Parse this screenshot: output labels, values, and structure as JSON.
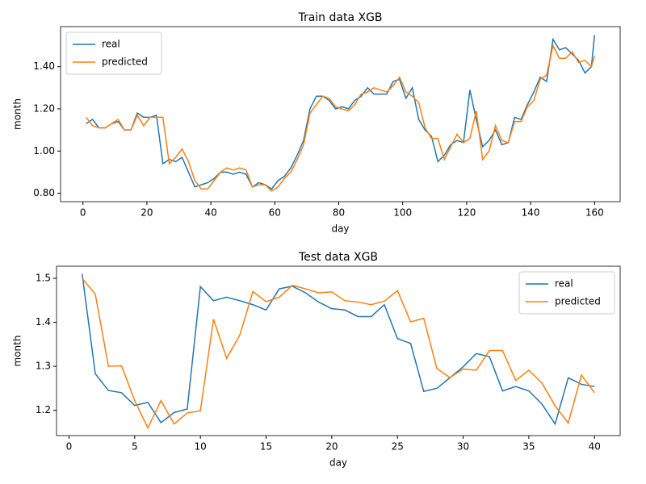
{
  "chart_data": [
    {
      "type": "line",
      "title": "Train data XGB",
      "xlabel": "day",
      "ylabel": "month",
      "legend": "upper left",
      "x": [
        1,
        3,
        5,
        7,
        9,
        11,
        13,
        15,
        17,
        19,
        21,
        23,
        25,
        27,
        29,
        31,
        33,
        35,
        37,
        39,
        41,
        43,
        45,
        47,
        49,
        51,
        53,
        55,
        57,
        59,
        61,
        63,
        65,
        67,
        69,
        71,
        73,
        75,
        77,
        79,
        81,
        83,
        85,
        87,
        89,
        91,
        93,
        95,
        97,
        99,
        101,
        103,
        105,
        107,
        109,
        111,
        113,
        115,
        117,
        119,
        121,
        123,
        125,
        127,
        129,
        131,
        133,
        135,
        137,
        139,
        141,
        143,
        145,
        147,
        149,
        151,
        153,
        155,
        157,
        159,
        160
      ],
      "series": [
        {
          "name": "real",
          "color": "#1f77b4",
          "values": [
            1.13,
            1.15,
            1.11,
            1.11,
            1.13,
            1.14,
            1.1,
            1.1,
            1.18,
            1.16,
            1.16,
            1.17,
            0.94,
            0.96,
            0.95,
            0.97,
            0.9,
            0.83,
            0.84,
            0.85,
            0.87,
            0.9,
            0.9,
            0.89,
            0.9,
            0.89,
            0.83,
            0.85,
            0.84,
            0.82,
            0.86,
            0.88,
            0.92,
            0.98,
            1.05,
            1.2,
            1.26,
            1.26,
            1.24,
            1.2,
            1.21,
            1.2,
            1.24,
            1.26,
            1.3,
            1.27,
            1.27,
            1.27,
            1.33,
            1.34,
            1.25,
            1.3,
            1.15,
            1.1,
            1.07,
            0.95,
            0.98,
            1.03,
            1.05,
            1.04,
            1.29,
            1.15,
            1.02,
            1.05,
            1.1,
            1.03,
            1.04,
            1.16,
            1.15,
            1.22,
            1.28,
            1.35,
            1.33,
            1.53,
            1.48,
            1.49,
            1.46,
            1.43,
            1.37,
            1.4,
            1.55
          ]
        },
        {
          "name": "predicted",
          "color": "#ff7f0e",
          "values": [
            1.16,
            1.12,
            1.11,
            1.11,
            1.13,
            1.15,
            1.1,
            1.1,
            1.17,
            1.12,
            1.16,
            1.16,
            1.16,
            0.94,
            0.97,
            1.01,
            0.95,
            0.86,
            0.82,
            0.82,
            0.86,
            0.9,
            0.92,
            0.91,
            0.92,
            0.91,
            0.83,
            0.84,
            0.84,
            0.81,
            0.83,
            0.87,
            0.9,
            0.96,
            1.03,
            1.18,
            1.22,
            1.26,
            1.25,
            1.21,
            1.2,
            1.19,
            1.22,
            1.27,
            1.28,
            1.3,
            1.29,
            1.28,
            1.31,
            1.35,
            1.28,
            1.26,
            1.23,
            1.11,
            1.06,
            1.06,
            0.96,
            1.02,
            1.08,
            1.04,
            1.06,
            1.19,
            0.96,
            1.0,
            1.12,
            1.05,
            1.04,
            1.14,
            1.14,
            1.21,
            1.24,
            1.34,
            1.36,
            1.5,
            1.44,
            1.44,
            1.47,
            1.42,
            1.43,
            1.4,
            1.45
          ]
        }
      ],
      "xlim": [
        -7,
        168
      ],
      "xticks": [
        0,
        20,
        40,
        60,
        80,
        100,
        120,
        140,
        160
      ],
      "ylim": [
        0.76,
        1.59
      ],
      "yticks": [
        {
          "value": 0.8,
          "label": "0.80"
        },
        {
          "value": 1.0,
          "label": "1.00"
        },
        {
          "value": 1.2,
          "label": "1.20"
        },
        {
          "value": 1.4,
          "label": "1.40"
        }
      ]
    },
    {
      "type": "line",
      "title": "Test data XGB",
      "xlabel": "day",
      "ylabel": "month",
      "legend": "upper right",
      "x": [
        1,
        2,
        3,
        4,
        5,
        6,
        7,
        8,
        9,
        10,
        11,
        12,
        13,
        14,
        15,
        16,
        17,
        18,
        19,
        20,
        21,
        22,
        23,
        24,
        25,
        26,
        27,
        28,
        29,
        30,
        31,
        32,
        33,
        34,
        35,
        36,
        37,
        38,
        39,
        40
      ],
      "series": [
        {
          "name": "real",
          "color": "#1f77b4",
          "values": [
            1.51,
            1.283,
            1.245,
            1.24,
            1.211,
            1.218,
            1.172,
            1.195,
            1.203,
            1.481,
            1.449,
            1.457,
            1.449,
            1.44,
            1.428,
            1.476,
            1.482,
            1.467,
            1.446,
            1.431,
            1.428,
            1.413,
            1.413,
            1.44,
            1.363,
            1.352,
            1.243,
            1.25,
            1.274,
            1.299,
            1.329,
            1.322,
            1.244,
            1.254,
            1.244,
            1.214,
            1.169,
            1.274,
            1.259,
            1.254
          ]
        },
        {
          "name": "predicted",
          "color": "#ff7f0e",
          "values": [
            1.5,
            1.464,
            1.3,
            1.301,
            1.222,
            1.16,
            1.222,
            1.169,
            1.194,
            1.199,
            1.407,
            1.318,
            1.371,
            1.47,
            1.447,
            1.457,
            1.484,
            1.476,
            1.467,
            1.469,
            1.449,
            1.446,
            1.44,
            1.448,
            1.472,
            1.401,
            1.409,
            1.295,
            1.274,
            1.294,
            1.291,
            1.336,
            1.336,
            1.268,
            1.291,
            1.262,
            1.21,
            1.171,
            1.28,
            1.24
          ]
        }
      ],
      "xlim": [
        -0.95,
        41.95
      ],
      "xticks": [
        0,
        5,
        10,
        15,
        20,
        25,
        30,
        35,
        40
      ],
      "ylim": [
        1.1425,
        1.5275
      ],
      "yticks": [
        1.2,
        1.3,
        1.4,
        1.5
      ]
    }
  ]
}
